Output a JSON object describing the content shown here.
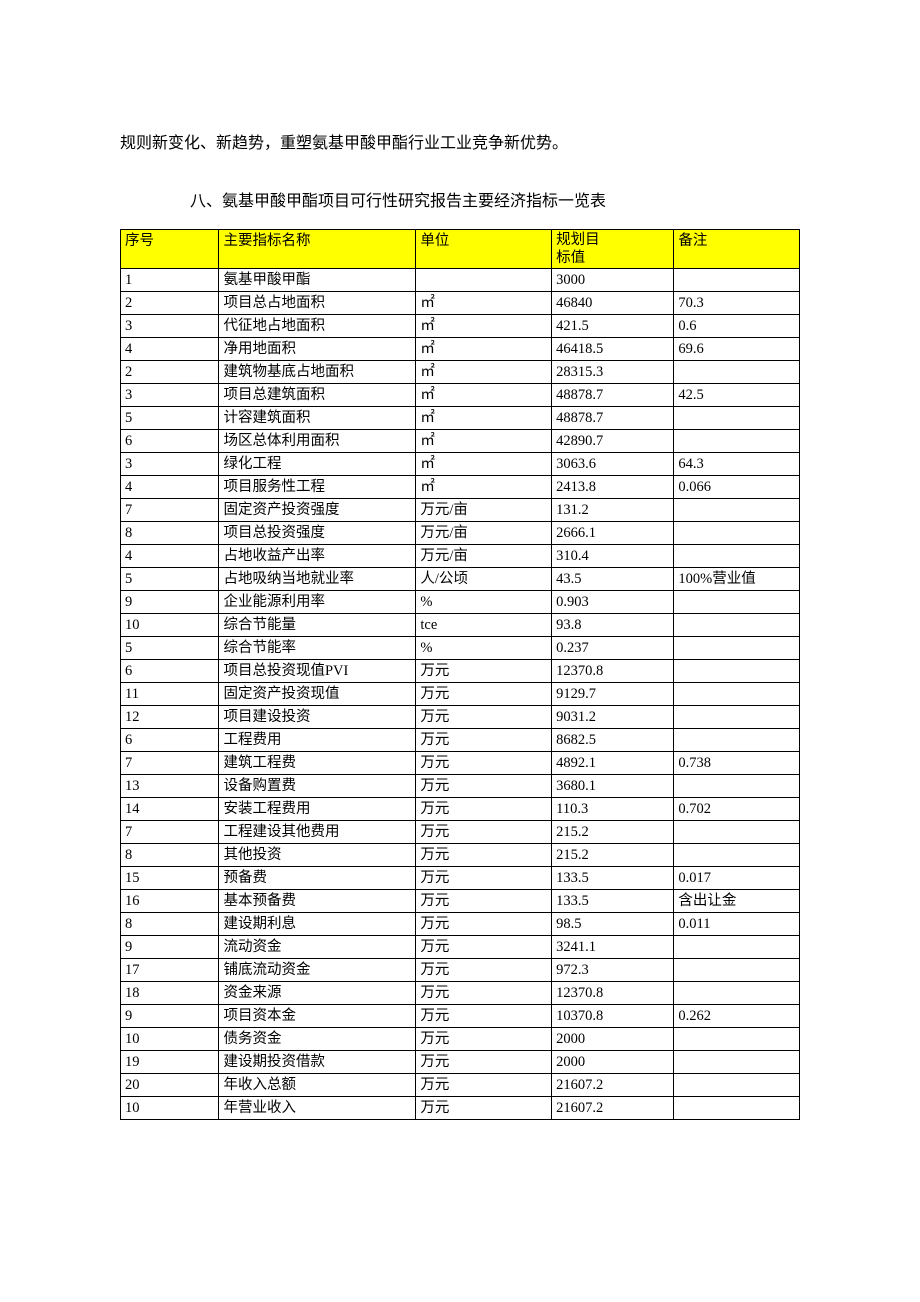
{
  "intro_text": "规则新变化、新趋势，重塑氨基甲酸甲酯行业工业竞争新优势。",
  "section_title": "八、氨基甲酸甲酯项目可行性研究报告主要经济指标一览表",
  "table": {
    "headers": {
      "seq": "序号",
      "name": "主要指标名称",
      "unit": "单位",
      "value_line1": "规划目",
      "value_line2": "标值",
      "remark": "备注"
    },
    "rows": [
      {
        "seq": "1",
        "name": "氨基甲酸甲酯",
        "unit": "",
        "value": "3000",
        "remark": ""
      },
      {
        "seq": "2",
        "name": "项目总占地面积",
        "unit": "㎡",
        "value": "46840",
        "remark": "70.3"
      },
      {
        "seq": "3",
        "name": "代征地占地面积",
        "unit": "㎡",
        "value": "421.5",
        "remark": "0.6"
      },
      {
        "seq": "4",
        "name": "净用地面积",
        "unit": "㎡",
        "value": "46418.5",
        "remark": "69.6"
      },
      {
        "seq": "2",
        "name": "建筑物基底占地面积",
        "unit": "㎡",
        "value": "28315.3",
        "remark": ""
      },
      {
        "seq": "3",
        "name": "项目总建筑面积",
        "unit": "㎡",
        "value": "48878.7",
        "remark": "42.5"
      },
      {
        "seq": "5",
        "name": "计容建筑面积",
        "unit": "㎡",
        "value": "48878.7",
        "remark": ""
      },
      {
        "seq": "6",
        "name": "场区总体利用面积",
        "unit": "㎡",
        "value": "42890.7",
        "remark": ""
      },
      {
        "seq": "3",
        "name": "绿化工程",
        "unit": "㎡",
        "value": "3063.6",
        "remark": "64.3"
      },
      {
        "seq": "4",
        "name": "项目服务性工程",
        "unit": "㎡",
        "value": "2413.8",
        "remark": "0.066"
      },
      {
        "seq": "7",
        "name": "固定资产投资强度",
        "unit": "万元/亩",
        "value": "131.2",
        "remark": ""
      },
      {
        "seq": "8",
        "name": "项目总投资强度",
        "unit": "万元/亩",
        "value": "2666.1",
        "remark": ""
      },
      {
        "seq": "4",
        "name": "占地收益产出率",
        "unit": "万元/亩",
        "value": "310.4",
        "remark": ""
      },
      {
        "seq": "5",
        "name": "占地吸纳当地就业率",
        "unit": "人/公顷",
        "value": "43.5",
        "remark": "100%营业值"
      },
      {
        "seq": "9",
        "name": "企业能源利用率",
        "unit": "%",
        "value": "0.903",
        "remark": ""
      },
      {
        "seq": "10",
        "name": "综合节能量",
        "unit": "tce",
        "value": "93.8",
        "remark": ""
      },
      {
        "seq": "5",
        "name": "综合节能率",
        "unit": "%",
        "value": "0.237",
        "remark": ""
      },
      {
        "seq": "6",
        "name": "项目总投资现值PVI",
        "unit": "万元",
        "value": "12370.8",
        "remark": ""
      },
      {
        "seq": "11",
        "name": "固定资产投资现值",
        "unit": "万元",
        "value": "9129.7",
        "remark": ""
      },
      {
        "seq": "12",
        "name": "项目建设投资",
        "unit": "万元",
        "value": "9031.2",
        "remark": ""
      },
      {
        "seq": "6",
        "name": "工程费用",
        "unit": "万元",
        "value": "8682.5",
        "remark": ""
      },
      {
        "seq": "7",
        "name": "建筑工程费",
        "unit": "万元",
        "value": "4892.1",
        "remark": "0.738"
      },
      {
        "seq": "13",
        "name": "设备购置费",
        "unit": "万元",
        "value": "3680.1",
        "remark": ""
      },
      {
        "seq": "14",
        "name": "安装工程费用",
        "unit": "万元",
        "value": "110.3",
        "remark": "0.702"
      },
      {
        "seq": "7",
        "name": "工程建设其他费用",
        "unit": "万元",
        "value": "215.2",
        "remark": ""
      },
      {
        "seq": "8",
        "name": "其他投资",
        "unit": "万元",
        "value": "215.2",
        "remark": ""
      },
      {
        "seq": "15",
        "name": "预备费",
        "unit": "万元",
        "value": "133.5",
        "remark": "0.017"
      },
      {
        "seq": "16",
        "name": "基本预备费",
        "unit": "万元",
        "value": "133.5",
        "remark": "含出让金"
      },
      {
        "seq": "8",
        "name": "建设期利息",
        "unit": "万元",
        "value": "98.5",
        "remark": "0.011"
      },
      {
        "seq": "9",
        "name": "流动资金",
        "unit": "万元",
        "value": "3241.1",
        "remark": ""
      },
      {
        "seq": "17",
        "name": "铺底流动资金",
        "unit": "万元",
        "value": "972.3",
        "remark": ""
      },
      {
        "seq": "18",
        "name": "资金来源",
        "unit": "万元",
        "value": "12370.8",
        "remark": ""
      },
      {
        "seq": "9",
        "name": "项目资本金",
        "unit": "万元",
        "value": "10370.8",
        "remark": "0.262"
      },
      {
        "seq": "10",
        "name": "债务资金",
        "unit": "万元",
        "value": "2000",
        "remark": ""
      },
      {
        "seq": "19",
        "name": "建设期投资借款",
        "unit": "万元",
        "value": "2000",
        "remark": ""
      },
      {
        "seq": "20",
        "name": "年收入总额",
        "unit": "万元",
        "value": "21607.2",
        "remark": ""
      },
      {
        "seq": "10",
        "name": "年营业收入",
        "unit": "万元",
        "value": "21607.2",
        "remark": ""
      }
    ]
  }
}
